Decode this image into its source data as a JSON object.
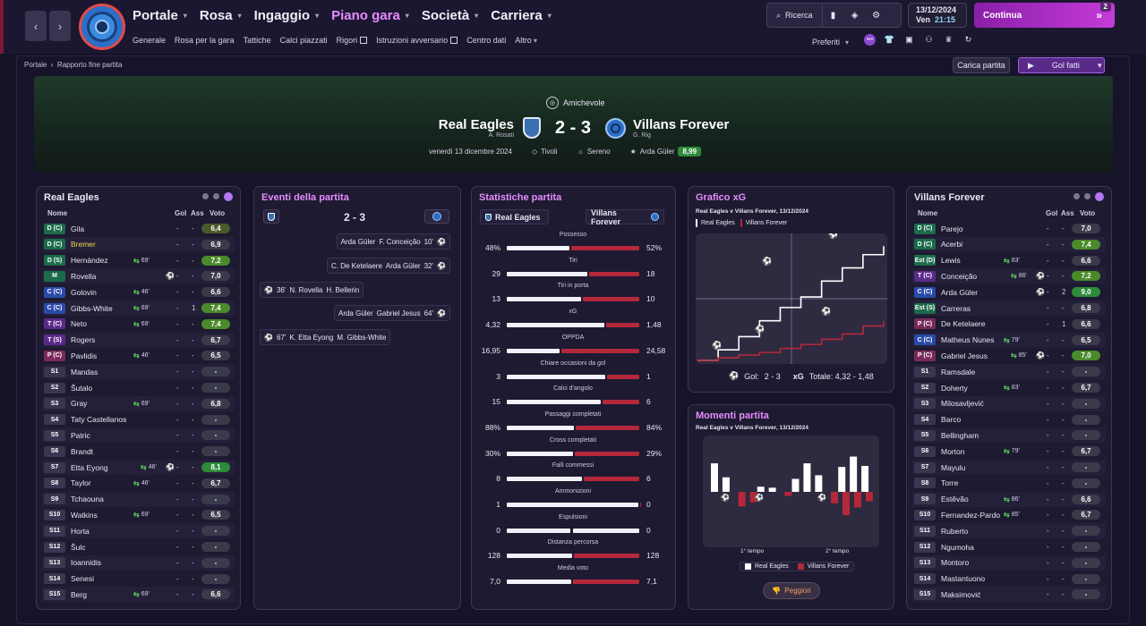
{
  "nav": {
    "main": [
      {
        "label": "Portale",
        "active": false
      },
      {
        "label": "Rosa",
        "active": false
      },
      {
        "label": "Ingaggio",
        "active": false
      },
      {
        "label": "Piano gara",
        "active": true
      },
      {
        "label": "Società",
        "active": false
      },
      {
        "label": "Carriera",
        "active": false
      }
    ],
    "sub": [
      "Generale",
      "Rosa per la gara",
      "Tattiche",
      "Calci piazzati",
      "Rigori",
      "Istruzioni avversario",
      "Centro dati",
      "Altro"
    ],
    "search": "Ricerca",
    "date": "13/12/2024",
    "day": "Ven",
    "time": "21:15",
    "continua": "Continua",
    "badge": "2",
    "preferiti": "Preferiti"
  },
  "breadcrumb": [
    "Portale",
    "Rapporto fine partita"
  ],
  "buttons": {
    "carica": "Carica partita",
    "gol": "Gol fatti"
  },
  "match": {
    "competition": "Amichevole",
    "home": "Real Eagles",
    "home_mgr": "A. Rosati",
    "away": "Villans Forever",
    "away_mgr": "G. Rig",
    "score": "2 - 3",
    "date": "venerdì 13 dicembre 2024",
    "stadium": "Tivoli",
    "weather": "Sereno",
    "potm": "Arda Güler",
    "potm_rating": "8,99"
  },
  "headers": {
    "nome": "Nome",
    "gol": "Gol",
    "ass": "Ass",
    "voto": "Voto"
  },
  "home_players": [
    {
      "pos": "D (C)",
      "pc": "#1c6b4a",
      "name": "Gila",
      "sub": "",
      "gol": "-",
      "ass": "-",
      "voto": "6,4",
      "vc": "#4a5a2a"
    },
    {
      "pos": "D (C)",
      "pc": "#1c6b4a",
      "name": "Bremer",
      "hl": true,
      "sub": "",
      "gol": "-",
      "ass": "-",
      "voto": "6,9",
      "vc": "#3a3a4a"
    },
    {
      "pos": "D (S)",
      "pc": "#1c6b4a",
      "name": "Hernández",
      "sub": "69'",
      "gol": "-",
      "ass": "-",
      "voto": "7,2",
      "vc": "#4a8a2a"
    },
    {
      "pos": "M",
      "pc": "#1c6b4a",
      "name": "Rovella",
      "ballq": true,
      "sub": "",
      "gol": "-",
      "ass": "-",
      "voto": "7,0",
      "vc": "#3a3a4a"
    },
    {
      "pos": "C (C)",
      "pc": "#2a4aa8",
      "name": "Golovin",
      "sub": "46'",
      "gol": "-",
      "ass": "-",
      "voto": "6,6",
      "vc": "#3a3a4a"
    },
    {
      "pos": "C (C)",
      "pc": "#2a4aa8",
      "name": "Gibbs-White",
      "sub": "69'",
      "gol": "-",
      "ass": "1",
      "voto": "7,4",
      "vc": "#4a8a2a"
    },
    {
      "pos": "T (C)",
      "pc": "#5a2a8a",
      "name": "Neto",
      "sub": "69'",
      "gol": "-",
      "ass": "-",
      "voto": "7,4",
      "vc": "#4a8a2a"
    },
    {
      "pos": "T (S)",
      "pc": "#5a2a8a",
      "name": "Rogers",
      "sub": "",
      "gol": "-",
      "ass": "-",
      "voto": "6,7",
      "vc": "#3a3a4a"
    },
    {
      "pos": "P (C)",
      "pc": "#7a2a5a",
      "name": "Pavlidis",
      "sub": "46'",
      "gol": "-",
      "ass": "-",
      "voto": "6,5",
      "vc": "#3a3a4a"
    },
    {
      "pos": "S1",
      "pc": "#3a3650",
      "name": "Mandas",
      "sub": "",
      "gol": "-",
      "ass": "-",
      "voto": "-",
      "vc": "#3a3a4a"
    },
    {
      "pos": "S2",
      "pc": "#3a3650",
      "name": "Šutalo",
      "sub": "",
      "gol": "-",
      "ass": "-",
      "voto": "-",
      "vc": "#3a3a4a"
    },
    {
      "pos": "S3",
      "pc": "#3a3650",
      "name": "Gray",
      "sub": "69'",
      "gol": "-",
      "ass": "-",
      "voto": "6,8",
      "vc": "#3a3a4a"
    },
    {
      "pos": "S4",
      "pc": "#3a3650",
      "name": "Taty Castellanos",
      "sub": "",
      "gol": "-",
      "ass": "-",
      "voto": "-",
      "vc": "#3a3a4a"
    },
    {
      "pos": "S5",
      "pc": "#3a3650",
      "name": "Patric",
      "sub": "",
      "gol": "-",
      "ass": "-",
      "voto": "-",
      "vc": "#3a3a4a"
    },
    {
      "pos": "S6",
      "pc": "#3a3650",
      "name": "Brandt",
      "sub": "",
      "gol": "-",
      "ass": "-",
      "voto": "-",
      "vc": "#3a3a4a"
    },
    {
      "pos": "S7",
      "pc": "#3a3650",
      "name": "Etta Eyong",
      "ballq": true,
      "sub": "46'",
      "gol": "-",
      "ass": "-",
      "voto": "8,1",
      "vc": "#2d8a3a"
    },
    {
      "pos": "S8",
      "pc": "#3a3650",
      "name": "Taylor",
      "sub": "46'",
      "gol": "-",
      "ass": "-",
      "voto": "6,7",
      "vc": "#3a3a4a"
    },
    {
      "pos": "S9",
      "pc": "#3a3650",
      "name": "Tchaouna",
      "sub": "",
      "gol": "-",
      "ass": "-",
      "voto": "-",
      "vc": "#3a3a4a"
    },
    {
      "pos": "S10",
      "pc": "#3a3650",
      "name": "Watkins",
      "sub": "69'",
      "gol": "-",
      "ass": "-",
      "voto": "6,5",
      "vc": "#3a3a4a"
    },
    {
      "pos": "S11",
      "pc": "#3a3650",
      "name": "Horta",
      "sub": "",
      "gol": "-",
      "ass": "-",
      "voto": "-",
      "vc": "#3a3a4a"
    },
    {
      "pos": "S12",
      "pc": "#3a3650",
      "name": "Šulc",
      "sub": "",
      "gol": "-",
      "ass": "-",
      "voto": "-",
      "vc": "#3a3a4a"
    },
    {
      "pos": "S13",
      "pc": "#3a3650",
      "name": "Ioannidis",
      "sub": "",
      "gol": "-",
      "ass": "-",
      "voto": "-",
      "vc": "#3a3a4a"
    },
    {
      "pos": "S14",
      "pc": "#3a3650",
      "name": "Senesi",
      "sub": "",
      "gol": "-",
      "ass": "-",
      "voto": "-",
      "vc": "#3a3a4a"
    },
    {
      "pos": "S15",
      "pc": "#3a3650",
      "name": "Berg",
      "sub": "69'",
      "gol": "-",
      "ass": "-",
      "voto": "6,6",
      "vc": "#3a3a4a"
    }
  ],
  "away_players": [
    {
      "pos": "D (C)",
      "pc": "#1c6b4a",
      "name": "Parejo",
      "sub": "",
      "gol": "-",
      "ass": "-",
      "voto": "7,0",
      "vc": "#3a3a4a"
    },
    {
      "pos": "D (C)",
      "pc": "#1c6b4a",
      "name": "Acerbi",
      "sub": "",
      "gol": "-",
      "ass": "-",
      "voto": "7,4",
      "vc": "#4a8a2a"
    },
    {
      "pos": "Est (D)",
      "pc": "#1c6b4a",
      "name": "Lewis",
      "sub": "83'",
      "gol": "-",
      "ass": "-",
      "voto": "6,6",
      "vc": "#3a3a4a"
    },
    {
      "pos": "T (C)",
      "pc": "#5a2a8a",
      "name": "Conceição",
      "ballq": true,
      "sub": "86'",
      "gol": "-",
      "ass": "-",
      "voto": "7,2",
      "vc": "#4a8a2a"
    },
    {
      "pos": "C (C)",
      "pc": "#2a4aa8",
      "name": "Arda Güler",
      "ballq": true,
      "sub": "",
      "gol": "-",
      "ass": "2",
      "voto": "9,0",
      "vc": "#2d8a3a"
    },
    {
      "pos": "Est (S)",
      "pc": "#1c6b4a",
      "name": "Carreras",
      "sub": "",
      "gol": "-",
      "ass": "-",
      "voto": "6,8",
      "vc": "#3a3a4a"
    },
    {
      "pos": "P (C)",
      "pc": "#7a2a5a",
      "name": "De Ketelaere",
      "sub": "",
      "gol": "-",
      "ass": "1",
      "voto": "6,6",
      "vc": "#3a3a4a"
    },
    {
      "pos": "C (C)",
      "pc": "#2a4aa8",
      "name": "Matheus Nunes",
      "sub": "79'",
      "gol": "-",
      "ass": "-",
      "voto": "6,5",
      "vc": "#3a3a4a"
    },
    {
      "pos": "P (C)",
      "pc": "#7a2a5a",
      "name": "Gabriel Jesus",
      "ballq": true,
      "sub": "85'",
      "gol": "-",
      "ass": "-",
      "voto": "7,0",
      "vc": "#4a8a2a"
    },
    {
      "pos": "S1",
      "pc": "#3a3650",
      "name": "Ramsdale",
      "sub": "",
      "gol": "-",
      "ass": "-",
      "voto": "-",
      "vc": "#3a3a4a"
    },
    {
      "pos": "S2",
      "pc": "#3a3650",
      "name": "Doherty",
      "sub": "83'",
      "gol": "-",
      "ass": "-",
      "voto": "6,7",
      "vc": "#3a3a4a"
    },
    {
      "pos": "S3",
      "pc": "#3a3650",
      "name": "Milosavljević",
      "sub": "",
      "gol": "-",
      "ass": "-",
      "voto": "-",
      "vc": "#3a3a4a"
    },
    {
      "pos": "S4",
      "pc": "#3a3650",
      "name": "Barco",
      "sub": "",
      "gol": "-",
      "ass": "-",
      "voto": "-",
      "vc": "#3a3a4a"
    },
    {
      "pos": "S5",
      "pc": "#3a3650",
      "name": "Bellingham",
      "sub": "",
      "gol": "-",
      "ass": "-",
      "voto": "-",
      "vc": "#3a3a4a"
    },
    {
      "pos": "S6",
      "pc": "#3a3650",
      "name": "Morton",
      "sub": "79'",
      "gol": "-",
      "ass": "-",
      "voto": "6,7",
      "vc": "#3a3a4a"
    },
    {
      "pos": "S7",
      "pc": "#3a3650",
      "name": "Mayulu",
      "sub": "",
      "gol": "-",
      "ass": "-",
      "voto": "-",
      "vc": "#3a3a4a"
    },
    {
      "pos": "S8",
      "pc": "#3a3650",
      "name": "Torre",
      "sub": "",
      "gol": "-",
      "ass": "-",
      "voto": "-",
      "vc": "#3a3a4a"
    },
    {
      "pos": "S9",
      "pc": "#3a3650",
      "name": "Estêvão",
      "sub": "86'",
      "gol": "-",
      "ass": "-",
      "voto": "6,6",
      "vc": "#3a3a4a"
    },
    {
      "pos": "S10",
      "pc": "#3a3650",
      "name": "Fernandez-Pardo",
      "sub": "85'",
      "gol": "-",
      "ass": "-",
      "voto": "6,7",
      "vc": "#3a3a4a"
    },
    {
      "pos": "S11",
      "pc": "#3a3650",
      "name": "Ruberto",
      "sub": "",
      "gol": "-",
      "ass": "-",
      "voto": "-",
      "vc": "#3a3a4a"
    },
    {
      "pos": "S12",
      "pc": "#3a3650",
      "name": "Ngumoha",
      "sub": "",
      "gol": "-",
      "ass": "-",
      "voto": "-",
      "vc": "#3a3a4a"
    },
    {
      "pos": "S13",
      "pc": "#3a3650",
      "name": "Montoro",
      "sub": "",
      "gol": "-",
      "ass": "-",
      "voto": "-",
      "vc": "#3a3a4a"
    },
    {
      "pos": "S14",
      "pc": "#3a3650",
      "name": "Mastantuono",
      "sub": "",
      "gol": "-",
      "ass": "-",
      "voto": "-",
      "vc": "#3a3a4a"
    },
    {
      "pos": "S15",
      "pc": "#3a3650",
      "name": "Maksimović",
      "sub": "",
      "gol": "-",
      "ass": "-",
      "voto": "-",
      "vc": "#3a3a4a"
    }
  ],
  "panels": {
    "home": "Real Eagles",
    "events": "Eventi della partita",
    "stats": "Statistiche partita",
    "xg": "Grafico xG",
    "away": "Villans Forever",
    "moments": "Momenti partita"
  },
  "events": {
    "score": "2 - 3",
    "list": [
      {
        "side": "away",
        "scorer": "F. Conceição",
        "assist": "Arda Güler",
        "min": "10'"
      },
      {
        "side": "away",
        "scorer": "Arda Güler",
        "assist": "C. De Ketelaere",
        "min": "32'"
      },
      {
        "side": "home",
        "scorer": "N. Rovella",
        "assist": "H. Bellerin",
        "min": "36'"
      },
      {
        "side": "away",
        "scorer": "Gabriel Jesus",
        "assist": "Arda Güler",
        "min": "64'"
      },
      {
        "side": "home",
        "scorer": "K. Etta Eyong",
        "assist": "M. Gibbs-White",
        "min": "67'"
      }
    ]
  },
  "stats": {
    "home": "Real Eagles",
    "away": "Villans Forever",
    "rows": [
      {
        "label": "Possesso",
        "h": "48%",
        "a": "52%",
        "hv": 48,
        "av": 52
      },
      {
        "label": "Tiri",
        "h": "29",
        "a": "18",
        "hv": 29,
        "av": 18
      },
      {
        "label": "Tiri in porta",
        "h": "13",
        "a": "10",
        "hv": 13,
        "av": 10
      },
      {
        "label": "xG",
        "h": "4,32",
        "a": "1,48",
        "hv": 4.32,
        "av": 1.48
      },
      {
        "label": "OPPDA",
        "h": "16,95",
        "a": "24,58",
        "hv": 16.95,
        "av": 24.58
      },
      {
        "label": "Chiare occasioni da gol",
        "h": "3",
        "a": "1",
        "hv": 3,
        "av": 1
      },
      {
        "label": "Calci d'angolo",
        "h": "15",
        "a": "6",
        "hv": 15,
        "av": 6
      },
      {
        "label": "Passaggi completati",
        "h": "88%",
        "a": "84%",
        "hv": 88,
        "av": 84
      },
      {
        "label": "Cross completati",
        "h": "30%",
        "a": "29%",
        "hv": 30,
        "av": 29
      },
      {
        "label": "Falli commessi",
        "h": "8",
        "a": "6",
        "hv": 8,
        "av": 6
      },
      {
        "label": "Ammonizioni",
        "h": "1",
        "a": "0",
        "hv": 1,
        "av": 0
      },
      {
        "label": "Espulsioni",
        "h": "0",
        "a": "0",
        "hv": 0,
        "av": 0
      },
      {
        "label": "Distanza percorsa",
        "h": "128",
        "a": "128",
        "hv": 128,
        "av": 128
      },
      {
        "label": "Media voto",
        "h": "7,0",
        "a": "7,1",
        "hv": 7.0,
        "av": 7.1
      }
    ]
  },
  "xg": {
    "subtitle": "Real Eagles v Villans Forever, 13/12/2024",
    "legend_home": "Real Eagles",
    "legend_away": "Villans Forever",
    "footer_gol_label": "Gol:",
    "footer_gol": "2 - 3",
    "footer_xg_label": "xG",
    "footer_xg": "Totale: 4,32 - 1,48"
  },
  "moments": {
    "subtitle": "Real Eagles v Villans Forever, 13/12/2024",
    "half1": "1° tempo",
    "half2": "2° tempo",
    "legend_home": "Real Eagles",
    "legend_away": "Villans Forever",
    "peggiori": "Peggiori"
  },
  "chart_data": [
    {
      "type": "line",
      "title": "Grafico xG",
      "series": [
        {
          "name": "Real Eagles",
          "color": "#ffffff",
          "values": [
            0,
            0.4,
            0.9,
            1.5,
            2.0,
            2.4,
            3.0,
            3.5,
            4.0,
            4.32
          ]
        },
        {
          "name": "Villans Forever",
          "color": "#b3283a",
          "values": [
            0,
            0.1,
            0.2,
            0.3,
            0.45,
            0.6,
            0.8,
            1.0,
            1.3,
            1.48
          ]
        }
      ]
    },
    {
      "type": "bar",
      "title": "Momenti partita",
      "series": [
        {
          "name": "Real Eagles",
          "color": "#ffffff",
          "values": [
            0.55,
            0.28,
            0,
            0,
            0.1,
            0.08,
            0,
            0.25,
            0.55,
            0.32,
            0,
            0.48,
            0.68,
            0.5
          ]
        },
        {
          "name": "Villans Forever",
          "color": "#b3283a",
          "values": [
            0,
            0,
            -0.28,
            -0.2,
            0,
            0,
            -0.08,
            0,
            0,
            0,
            -0.22,
            -0.45,
            -0.3,
            -0.18
          ]
        }
      ]
    }
  ]
}
